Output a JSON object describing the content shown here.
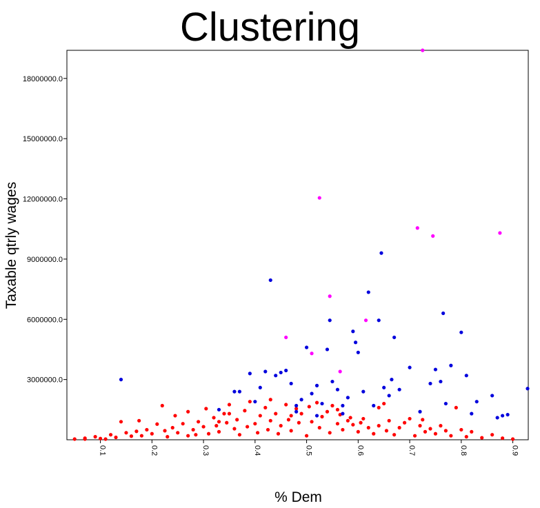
{
  "chart_data": {
    "type": "scatter",
    "title": "Clustering",
    "xlabel": "% Dem",
    "ylabel": "Taxable qtrly wages",
    "xlim": [
      0.035,
      0.93
    ],
    "ylim": [
      0,
      19400000
    ],
    "x_ticks": [
      0.1,
      0.2,
      0.3,
      0.4,
      0.5,
      0.6,
      0.7,
      0.8,
      0.9
    ],
    "x_tick_labels": [
      "0.1",
      "0.2",
      "0.3",
      "0.4",
      "0.5",
      "0.6",
      "0.7",
      "0.8",
      "0.9"
    ],
    "y_ticks": [
      3000000,
      6000000,
      9000000,
      12000000,
      15000000,
      18000000
    ],
    "y_tick_labels": [
      "3000000.0",
      "6000000.0",
      "9000000.0",
      "12000000.0",
      "15000000.0",
      "18000000.0"
    ],
    "grid": false,
    "series": [
      {
        "color": "#ff0000",
        "points": [
          [
            0.05,
            20000
          ],
          [
            0.07,
            80000
          ],
          [
            0.09,
            150000
          ],
          [
            0.1,
            60000
          ],
          [
            0.12,
            250000
          ],
          [
            0.13,
            120000
          ],
          [
            0.14,
            900000
          ],
          [
            0.15,
            350000
          ],
          [
            0.16,
            180000
          ],
          [
            0.17,
            420000
          ],
          [
            0.175,
            950000
          ],
          [
            0.18,
            200000
          ],
          [
            0.19,
            500000
          ],
          [
            0.2,
            300000
          ],
          [
            0.21,
            780000
          ],
          [
            0.22,
            1700000
          ],
          [
            0.225,
            450000
          ],
          [
            0.23,
            150000
          ],
          [
            0.24,
            600000
          ],
          [
            0.245,
            1200000
          ],
          [
            0.25,
            350000
          ],
          [
            0.26,
            800000
          ],
          [
            0.27,
            1400000
          ],
          [
            0.28,
            500000
          ],
          [
            0.285,
            250000
          ],
          [
            0.29,
            900000
          ],
          [
            0.3,
            650000
          ],
          [
            0.305,
            1550000
          ],
          [
            0.31,
            300000
          ],
          [
            0.32,
            1100000
          ],
          [
            0.325,
            700000
          ],
          [
            0.33,
            400000
          ],
          [
            0.34,
            1300000
          ],
          [
            0.345,
            850000
          ],
          [
            0.35,
            1750000
          ],
          [
            0.36,
            550000
          ],
          [
            0.365,
            1000000
          ],
          [
            0.37,
            250000
          ],
          [
            0.38,
            1450000
          ],
          [
            0.385,
            650000
          ],
          [
            0.39,
            1900000
          ],
          [
            0.4,
            800000
          ],
          [
            0.405,
            350000
          ],
          [
            0.41,
            1200000
          ],
          [
            0.42,
            1600000
          ],
          [
            0.425,
            500000
          ],
          [
            0.43,
            950000
          ],
          [
            0.44,
            1300000
          ],
          [
            0.445,
            300000
          ],
          [
            0.45,
            700000
          ],
          [
            0.46,
            1750000
          ],
          [
            0.465,
            1000000
          ],
          [
            0.47,
            450000
          ],
          [
            0.48,
            1550000
          ],
          [
            0.485,
            850000
          ],
          [
            0.49,
            1300000
          ],
          [
            0.5,
            200000
          ],
          [
            0.505,
            1650000
          ],
          [
            0.51,
            900000
          ],
          [
            0.52,
            1850000
          ],
          [
            0.525,
            600000
          ],
          [
            0.53,
            1150000
          ],
          [
            0.54,
            1400000
          ],
          [
            0.545,
            350000
          ],
          [
            0.55,
            1700000
          ],
          [
            0.56,
            800000
          ],
          [
            0.565,
            1250000
          ],
          [
            0.57,
            500000
          ],
          [
            0.58,
            950000
          ],
          [
            0.585,
            1100000
          ],
          [
            0.59,
            750000
          ],
          [
            0.6,
            400000
          ],
          [
            0.605,
            850000
          ],
          [
            0.61,
            1050000
          ],
          [
            0.62,
            600000
          ],
          [
            0.63,
            300000
          ],
          [
            0.64,
            700000
          ],
          [
            0.65,
            1800000
          ],
          [
            0.655,
            450000
          ],
          [
            0.66,
            950000
          ],
          [
            0.67,
            250000
          ],
          [
            0.68,
            600000
          ],
          [
            0.69,
            850000
          ],
          [
            0.7,
            1050000
          ],
          [
            0.71,
            200000
          ],
          [
            0.72,
            700000
          ],
          [
            0.725,
            1000000
          ],
          [
            0.73,
            400000
          ],
          [
            0.74,
            550000
          ],
          [
            0.75,
            300000
          ],
          [
            0.76,
            700000
          ],
          [
            0.77,
            450000
          ],
          [
            0.78,
            200000
          ],
          [
            0.79,
            1600000
          ],
          [
            0.8,
            500000
          ],
          [
            0.81,
            150000
          ],
          [
            0.82,
            400000
          ],
          [
            0.84,
            100000
          ],
          [
            0.86,
            250000
          ],
          [
            0.88,
            80000
          ],
          [
            0.9,
            30000
          ],
          [
            0.43,
            2000000
          ],
          [
            0.35,
            1300000
          ],
          [
            0.56,
            1500000
          ],
          [
            0.64,
            1600000
          ],
          [
            0.07,
            10000
          ],
          [
            0.11,
            30000
          ],
          [
            0.27,
            200000
          ],
          [
            0.33,
            900000
          ],
          [
            0.47,
            1200000
          ]
        ]
      },
      {
        "color": "#0000dd",
        "points": [
          [
            0.14,
            3000000
          ],
          [
            0.33,
            1500000
          ],
          [
            0.36,
            2400000
          ],
          [
            0.37,
            2400000
          ],
          [
            0.39,
            3300000
          ],
          [
            0.4,
            1900000
          ],
          [
            0.41,
            2600000
          ],
          [
            0.42,
            3400000
          ],
          [
            0.43,
            7950000
          ],
          [
            0.44,
            3200000
          ],
          [
            0.45,
            3350000
          ],
          [
            0.46,
            3450000
          ],
          [
            0.47,
            2800000
          ],
          [
            0.48,
            1400000
          ],
          [
            0.49,
            2000000
          ],
          [
            0.5,
            4600000
          ],
          [
            0.51,
            2300000
          ],
          [
            0.52,
            2700000
          ],
          [
            0.53,
            1800000
          ],
          [
            0.54,
            4500000
          ],
          [
            0.545,
            5950000
          ],
          [
            0.55,
            2900000
          ],
          [
            0.56,
            2500000
          ],
          [
            0.57,
            1300000
          ],
          [
            0.58,
            2100000
          ],
          [
            0.59,
            5400000
          ],
          [
            0.595,
            4850000
          ],
          [
            0.6,
            4350000
          ],
          [
            0.61,
            2400000
          ],
          [
            0.62,
            7350000
          ],
          [
            0.63,
            1700000
          ],
          [
            0.64,
            5950000
          ],
          [
            0.645,
            9300000
          ],
          [
            0.65,
            2600000
          ],
          [
            0.66,
            2200000
          ],
          [
            0.665,
            3000000
          ],
          [
            0.67,
            5100000
          ],
          [
            0.68,
            2500000
          ],
          [
            0.7,
            3600000
          ],
          [
            0.72,
            1400000
          ],
          [
            0.74,
            2800000
          ],
          [
            0.75,
            3500000
          ],
          [
            0.76,
            2900000
          ],
          [
            0.765,
            6300000
          ],
          [
            0.77,
            1800000
          ],
          [
            0.78,
            3700000
          ],
          [
            0.8,
            5350000
          ],
          [
            0.81,
            3200000
          ],
          [
            0.82,
            1300000
          ],
          [
            0.83,
            1900000
          ],
          [
            0.86,
            2200000
          ],
          [
            0.87,
            1100000
          ],
          [
            0.88,
            1200000
          ],
          [
            0.89,
            1250000
          ],
          [
            0.93,
            2550000
          ],
          [
            0.57,
            1700000
          ],
          [
            0.48,
            1700000
          ],
          [
            0.52,
            1200000
          ]
        ]
      },
      {
        "color": "#ff00ff",
        "points": [
          [
            0.46,
            5100000
          ],
          [
            0.51,
            4300000
          ],
          [
            0.525,
            12050000
          ],
          [
            0.545,
            7150000
          ],
          [
            0.565,
            3400000
          ],
          [
            0.615,
            5950000
          ],
          [
            0.725,
            19400000
          ],
          [
            0.715,
            10550000
          ],
          [
            0.745,
            10150000
          ],
          [
            0.875,
            10300000
          ]
        ]
      }
    ]
  }
}
